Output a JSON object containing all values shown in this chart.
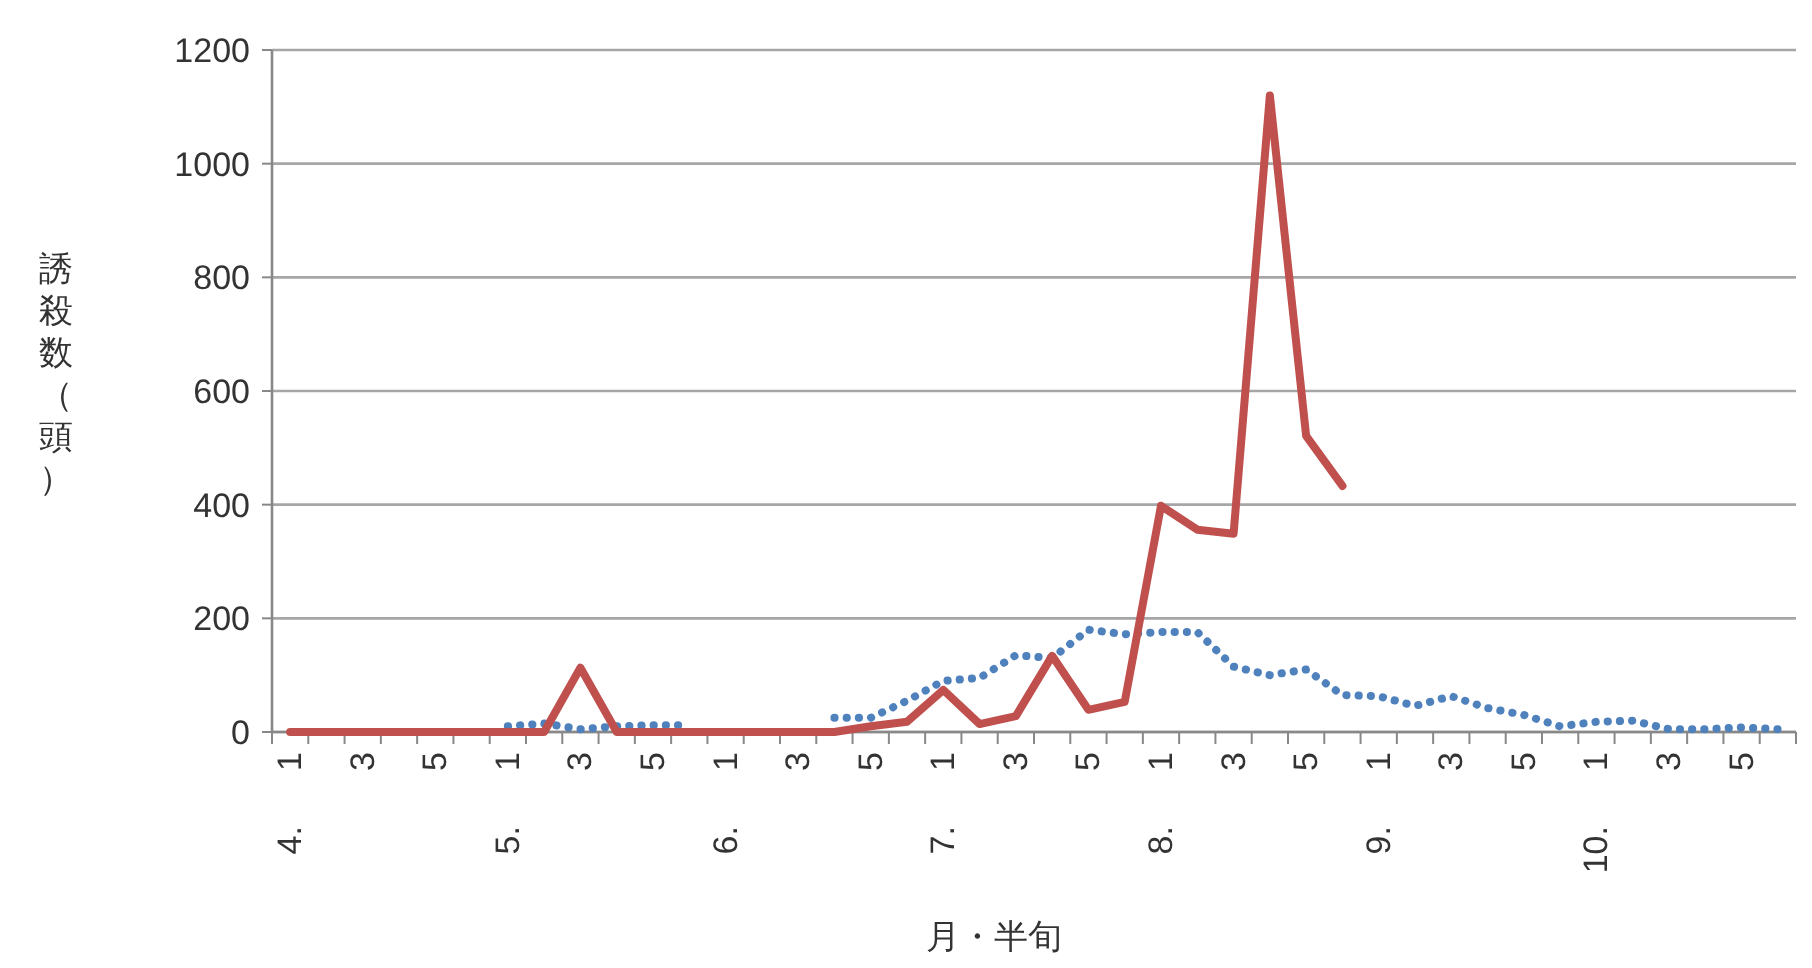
{
  "chart_data": {
    "type": "line",
    "ylabel": "誘殺数（頭）",
    "xlabel": "月・半旬",
    "categories": [
      "1",
      null,
      "3",
      null,
      "5",
      null,
      "1",
      null,
      "3",
      null,
      "5",
      null,
      "1",
      null,
      "3",
      null,
      "5",
      null,
      "1",
      null,
      "3",
      null,
      "5",
      null,
      "1",
      null,
      "3",
      null,
      "5",
      null,
      "1",
      null,
      "3",
      null,
      "5",
      null,
      "1",
      null,
      "3",
      null,
      "5",
      null
    ],
    "annotations": [
      "4.",
      "5.",
      "6.",
      "7.",
      "8.",
      "9.",
      "10."
    ],
    "ylim": [
      0,
      1200
    ],
    "yticks": [
      0,
      200,
      400,
      600,
      800,
      1000,
      1200
    ],
    "grid": "y",
    "marker": "none",
    "series": [
      {
        "color": "#4f81bd",
        "line_style": "dotted",
        "values": [
          null,
          null,
          null,
          null,
          null,
          null,
          10,
          15,
          5,
          10,
          12,
          12,
          null,
          null,
          null,
          25,
          25,
          55,
          90,
          95,
          135,
          130,
          180,
          172,
          176,
          176,
          115,
          100,
          110,
          65,
          63,
          46,
          63,
          42,
          30,
          10,
          18,
          20,
          5,
          5,
          8,
          5
        ]
      },
      {
        "color": "#c0504d",
        "line_style": "solid",
        "values": [
          0,
          0,
          0,
          0,
          0,
          0,
          0,
          0,
          113,
          0,
          0,
          0,
          0,
          0,
          0,
          0,
          10,
          18,
          74,
          14,
          28,
          134,
          39,
          53,
          398,
          356,
          349,
          1120,
          521,
          433,
          null,
          null,
          null,
          null,
          null,
          null,
          null,
          null,
          null,
          null,
          null,
          null
        ]
      }
    ]
  }
}
